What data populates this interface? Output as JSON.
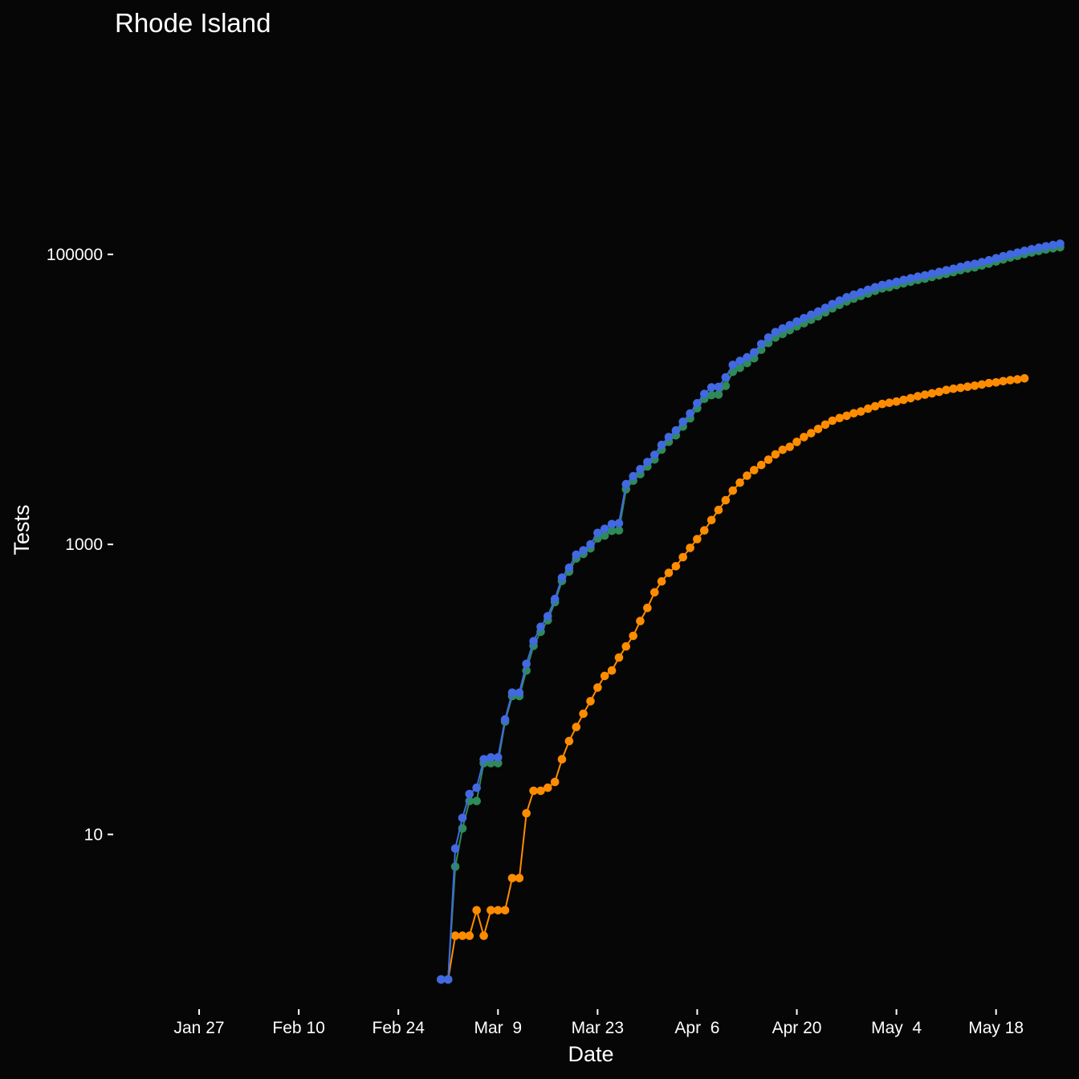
{
  "chart_data": {
    "type": "line",
    "title": "Rhode Island",
    "xlabel": "Date",
    "ylabel": "Tests",
    "y_scale": "log10",
    "ylim": [
      0.7,
      3000000
    ],
    "xlim": [
      "2020-01-20",
      "2020-05-23"
    ],
    "x_ticks": [
      {
        "date": "2020-01-27",
        "label": "Jan 27"
      },
      {
        "date": "2020-02-10",
        "label": "Feb 10"
      },
      {
        "date": "2020-02-24",
        "label": "Feb 24"
      },
      {
        "date": "2020-03-09",
        "label": "Mar  9"
      },
      {
        "date": "2020-03-23",
        "label": "Mar 23"
      },
      {
        "date": "2020-04-06",
        "label": "Apr  6"
      },
      {
        "date": "2020-04-20",
        "label": "Apr 20"
      },
      {
        "date": "2020-05-04",
        "label": "May  4"
      },
      {
        "date": "2020-05-18",
        "label": "May 18"
      }
    ],
    "y_ticks": [
      {
        "value": 10,
        "label": "10"
      },
      {
        "value": 1000,
        "label": "1000"
      },
      {
        "value": 100000,
        "label": "100000"
      }
    ],
    "grid": false,
    "legend": "none",
    "start_date": "2020-03-01",
    "series": [
      {
        "color": "#ff8c00",
        "values": [
          1,
          1,
          2,
          2,
          2,
          3,
          2,
          3,
          3,
          3,
          5,
          5,
          14,
          20,
          20,
          21,
          23,
          33,
          44,
          55,
          68,
          83,
          103,
          124,
          135,
          166,
          198,
          234,
          296,
          365,
          467,
          556,
          636,
          707,
          817,
          947,
          1088,
          1248,
          1471,
          1727,
          2015,
          2349,
          2665,
          2976,
          3251,
          3529,
          3838,
          4177,
          4491,
          4706,
          5090,
          5500,
          5841,
          6256,
          6699,
          7129,
          7439,
          7708,
          8018,
          8247,
          8621,
          8962,
          9289,
          9477,
          9652,
          9933,
          10205,
          10530,
          10779,
          11006,
          11274,
          11614,
          11835,
          12016,
          12219,
          12434,
          12674,
          12951,
          13092,
          13356,
          13571,
          13736,
          13952
        ]
      },
      {
        "color": "#2e8b57",
        "values": [
          1,
          1,
          6,
          11,
          17,
          17,
          31,
          31,
          31,
          60,
          90,
          90,
          135,
          200,
          250,
          300,
          400,
          560,
          650,
          800,
          860,
          940,
          1100,
          1150,
          1240,
          1250,
          2400,
          2750,
          3050,
          3450,
          3850,
          4500,
          5100,
          5650,
          6500,
          7400,
          8700,
          10100,
          10700,
          10800,
          12400,
          15500,
          16500,
          17800,
          19200,
          22000,
          24500,
          26700,
          28300,
          30000,
          31900,
          33500,
          35400,
          37400,
          39800,
          42400,
          44800,
          47400,
          49500,
          51600,
          53700,
          56000,
          58200,
          59400,
          61200,
          63100,
          64800,
          66600,
          68000,
          69800,
          71700,
          73400,
          75400,
          77800,
          79900,
          81400,
          83800,
          86300,
          89300,
          92200,
          95000,
          97600,
          100500,
          103000,
          105500,
          108000,
          110000,
          112000
        ]
      },
      {
        "color": "#4169e1",
        "values": [
          1,
          1,
          8,
          13,
          19,
          21,
          33,
          34,
          34,
          62,
          95,
          95,
          150,
          215,
          270,
          320,
          420,
          590,
          690,
          850,
          910,
          1000,
          1200,
          1280,
          1380,
          1400,
          2600,
          2950,
          3300,
          3700,
          4150,
          4850,
          5500,
          6100,
          7000,
          8000,
          9400,
          10900,
          12100,
          12200,
          14200,
          17300,
          18400,
          19500,
          21100,
          24100,
          26700,
          29100,
          30800,
          32500,
          34400,
          36300,
          38300,
          40300,
          42700,
          45400,
          48000,
          50600,
          52700,
          54700,
          57000,
          59300,
          61500,
          62900,
          64600,
          66600,
          68300,
          70100,
          71600,
          73600,
          75700,
          77600,
          79500,
          82000,
          84300,
          86000,
          88400,
          91000,
          94000,
          97000,
          99900,
          102800,
          105800,
          108500,
          111100,
          113700,
          116000,
          118500
        ]
      }
    ]
  }
}
